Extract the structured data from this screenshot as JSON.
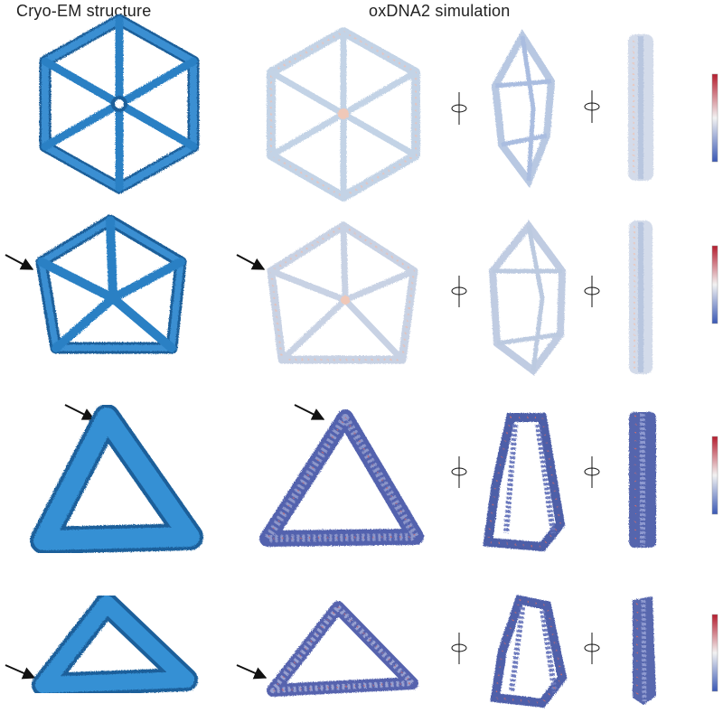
{
  "headers": {
    "cryo_em": "Cryo-EM structure",
    "oxdna": "oxDNA2 simulation"
  },
  "colors": {
    "cryo_blue": "#2a80c4",
    "cryo_dark": "#1a5f9a",
    "sim_light": "#c3d3e6",
    "sim_dark": "#4b5aa8",
    "colorbar_top": "#b51c2e",
    "colorbar_mid": "#f2f2f2",
    "colorbar_bottom": "#3a58b5"
  },
  "rows": [
    {
      "shape": "hexagon",
      "arrow": false,
      "sim_tone": "light"
    },
    {
      "shape": "pentagon",
      "arrow": true,
      "sim_tone": "light"
    },
    {
      "shape": "triangle",
      "arrow": true,
      "sim_tone": "dark"
    },
    {
      "shape": "triangle-tilted",
      "arrow": true,
      "sim_tone": "dark"
    }
  ],
  "icons": [
    "rotation-axis-icon"
  ]
}
